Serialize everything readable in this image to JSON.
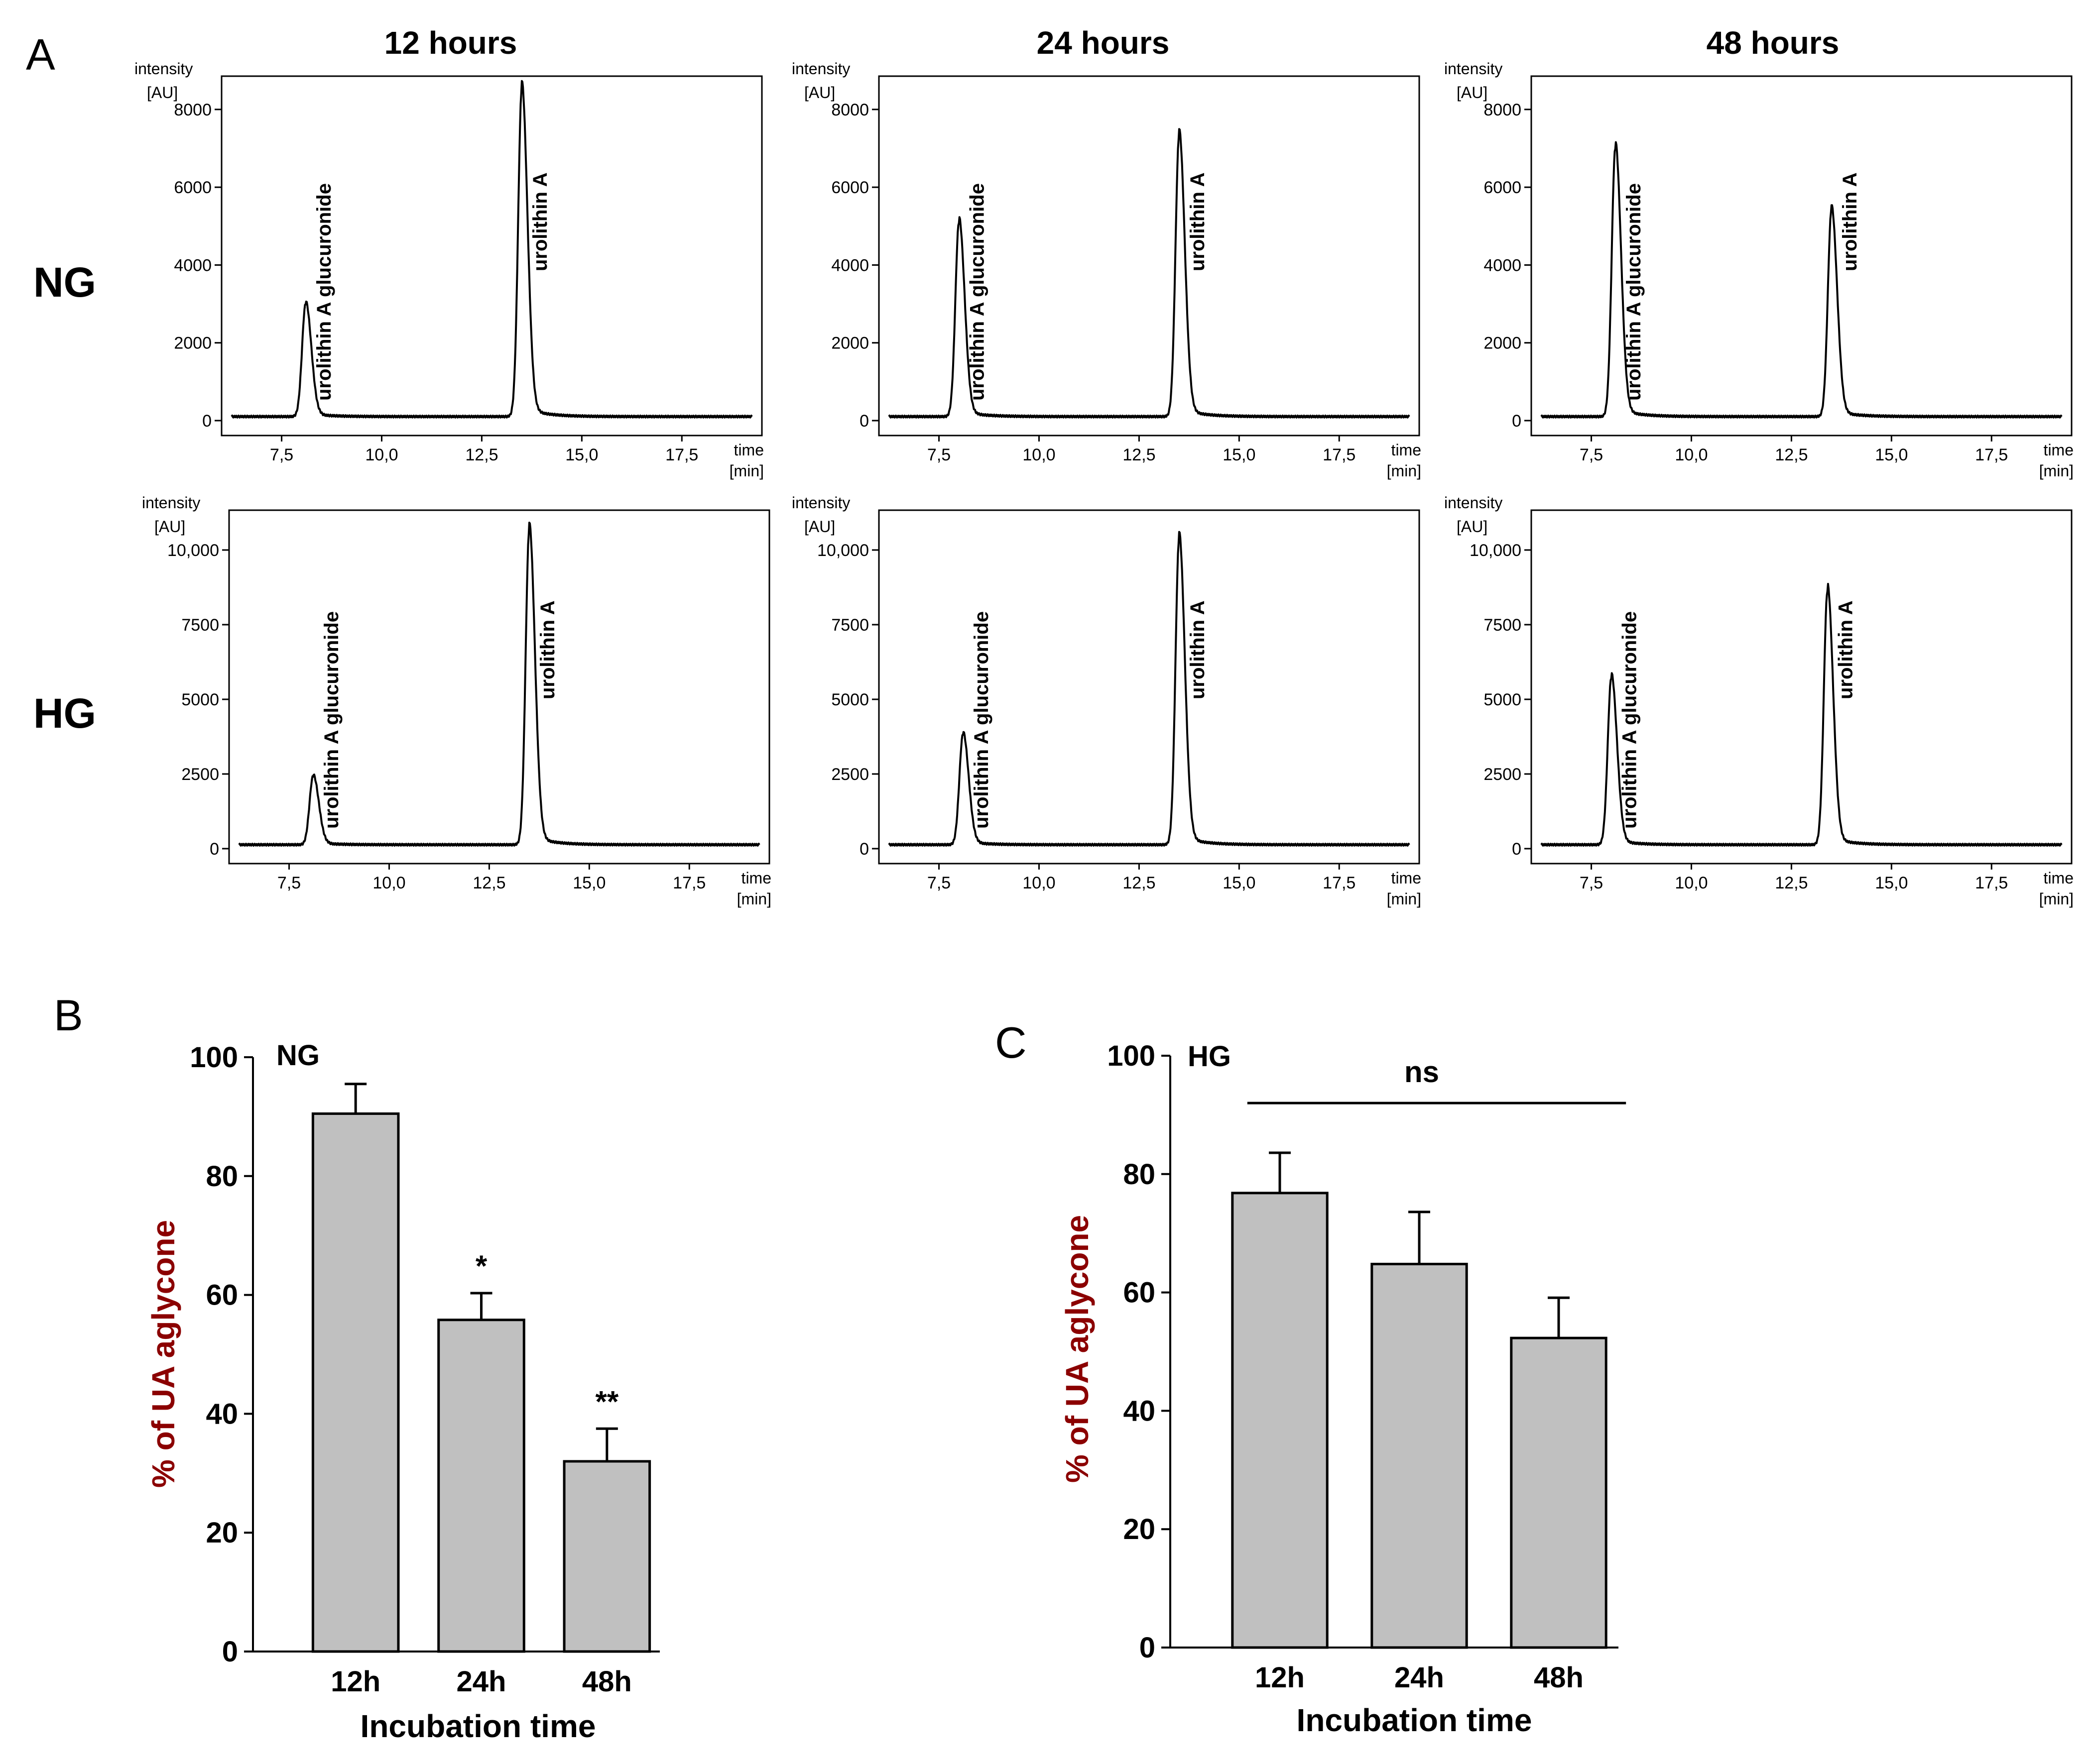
{
  "panel_letters": [
    "A",
    "B",
    "C"
  ],
  "column_titles": [
    "12 hours",
    "24 hours",
    "48 hours"
  ],
  "row_labels": [
    "NG",
    "HG"
  ],
  "chrom_axis": {
    "y_label_line1": "intensity",
    "y_label_line2": "[AU]",
    "x_label_line1": "time",
    "x_label_line2": "[min]",
    "x_ticks": [
      "7,5",
      "10,0",
      "12,5",
      "15,0",
      "17,5"
    ]
  },
  "peak_labels": {
    "glucuronide": "urolithin A glucuronide",
    "aglycone": "urolithin A"
  },
  "bar_axis": {
    "y_label": "% of UA aglycone",
    "x_label": "Incubation time",
    "y_ticks": [
      "0",
      "20",
      "40",
      "60",
      "80",
      "100"
    ]
  },
  "colors": {
    "bar_fill": "#c0c0c0",
    "ylabel": "#8b0000",
    "line": "#000000"
  },
  "chart_data": [
    {
      "type": "line",
      "panel": "A",
      "row": "NG",
      "column": "12 hours",
      "xlabel": "time [min]",
      "ylabel": "intensity [AU]",
      "xlim": [
        6.0,
        19.5
      ],
      "ylim": [
        0,
        8600
      ],
      "y_ticks": [
        "0",
        "2000",
        "4000",
        "6000",
        "8000"
      ],
      "peaks": [
        {
          "label": "urolithin A glucuronide",
          "x": 8.1,
          "y": 2900
        },
        {
          "label": "urolithin A",
          "x": 13.5,
          "y": 8400
        }
      ]
    },
    {
      "type": "line",
      "panel": "A",
      "row": "NG",
      "column": "24 hours",
      "xlabel": "time [min]",
      "ylabel": "intensity [AU]",
      "xlim": [
        6.0,
        19.5
      ],
      "ylim": [
        0,
        8600
      ],
      "y_ticks": [
        "0",
        "2000",
        "4000",
        "6000",
        "8000"
      ],
      "peaks": [
        {
          "label": "urolithin A glucuronide",
          "x": 8.0,
          "y": 5000
        },
        {
          "label": "urolithin A",
          "x": 13.5,
          "y": 7200
        }
      ]
    },
    {
      "type": "line",
      "panel": "A",
      "row": "NG",
      "column": "48 hours",
      "xlabel": "time [min]",
      "ylabel": "intensity [AU]",
      "xlim": [
        6.0,
        19.5
      ],
      "ylim": [
        0,
        8600
      ],
      "y_ticks": [
        "0",
        "2000",
        "4000",
        "6000",
        "8000"
      ],
      "peaks": [
        {
          "label": "urolithin A glucuronide",
          "x": 8.1,
          "y": 6900
        },
        {
          "label": "urolithin A",
          "x": 13.5,
          "y": 5300
        }
      ]
    },
    {
      "type": "line",
      "panel": "A",
      "row": "HG",
      "column": "12 hours",
      "xlabel": "time [min]",
      "ylabel": "intensity [AU]",
      "xlim": [
        6.0,
        19.5
      ],
      "ylim": [
        0,
        11000
      ],
      "y_ticks": [
        "0",
        "2500",
        "5000",
        "7500",
        "10,000"
      ],
      "peaks": [
        {
          "label": "urolithin A glucuronide",
          "x": 8.1,
          "y": 2300
        },
        {
          "label": "urolithin A",
          "x": 13.5,
          "y": 10500
        }
      ]
    },
    {
      "type": "line",
      "panel": "A",
      "row": "HG",
      "column": "24 hours",
      "xlabel": "time [min]",
      "ylabel": "intensity [AU]",
      "xlim": [
        6.0,
        19.5
      ],
      "ylim": [
        0,
        11000
      ],
      "y_ticks": [
        "0",
        "2500",
        "5000",
        "7500",
        "10,000"
      ],
      "peaks": [
        {
          "label": "urolithin A glucuronide",
          "x": 8.1,
          "y": 3700
        },
        {
          "label": "urolithin A",
          "x": 13.5,
          "y": 10200
        }
      ]
    },
    {
      "type": "line",
      "panel": "A",
      "row": "HG",
      "column": "48 hours",
      "xlabel": "time [min]",
      "ylabel": "intensity [AU]",
      "xlim": [
        6.0,
        19.5
      ],
      "ylim": [
        0,
        11000
      ],
      "y_ticks": [
        "0",
        "2500",
        "5000",
        "7500",
        "10,000"
      ],
      "peaks": [
        {
          "label": "urolithin A glucuronide",
          "x": 8.0,
          "y": 5600
        },
        {
          "label": "urolithin A",
          "x": 13.4,
          "y": 8500
        }
      ]
    },
    {
      "type": "bar",
      "panel": "B",
      "tag": "NG",
      "categories": [
        "12h",
        "24h",
        "48h"
      ],
      "values": [
        90.5,
        55.8,
        32.0
      ],
      "errors": [
        5.0,
        4.5,
        5.5
      ],
      "significance": [
        "",
        "*",
        "**"
      ],
      "ylim": [
        0,
        100
      ],
      "xlabel": "Incubation time",
      "ylabel": "% of UA aglycone"
    },
    {
      "type": "bar",
      "panel": "C",
      "tag": "HG",
      "categories": [
        "12h",
        "24h",
        "48h"
      ],
      "values": [
        76.8,
        64.8,
        52.3
      ],
      "errors": [
        6.8,
        8.8,
        6.8
      ],
      "significance_bar": "ns",
      "ylim": [
        0,
        100
      ],
      "xlabel": "Incubation time",
      "ylabel": "% of UA aglycone"
    }
  ]
}
